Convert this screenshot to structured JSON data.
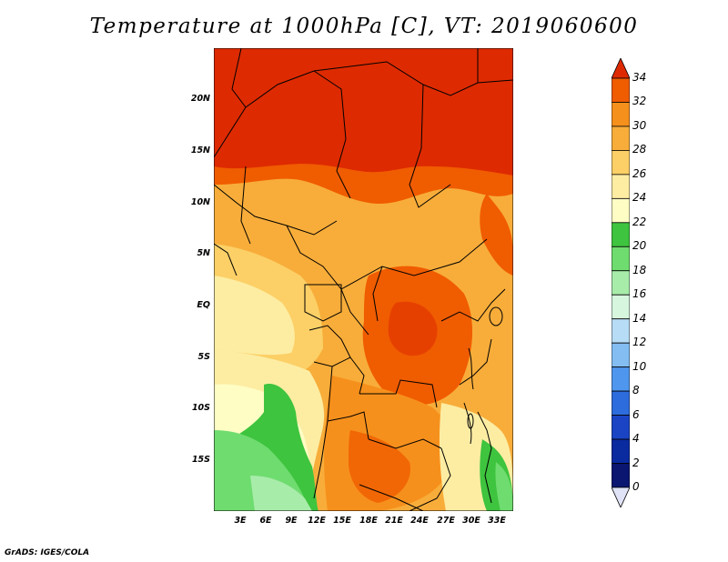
{
  "title": "Temperature at 1000hPa [C], VT: 2019060600",
  "credit": "GrADS: IGES/COLA",
  "map": {
    "lon_range": [
      0,
      35
    ],
    "lat_range": [
      -20,
      25
    ],
    "y_ticks": [
      "20N",
      "15N",
      "10N",
      "5N",
      "EQ",
      "5S",
      "10S",
      "15S"
    ],
    "x_ticks": [
      "3E",
      "6E",
      "9E",
      "12E",
      "15E",
      "18E",
      "21E",
      "24E",
      "27E",
      "30E",
      "33E"
    ]
  },
  "colorbar": {
    "labels": [
      "34",
      "32",
      "30",
      "28",
      "26",
      "24",
      "22",
      "20",
      "18",
      "16",
      "14",
      "12",
      "10",
      "8",
      "6",
      "4",
      "2",
      "0"
    ],
    "colors": [
      "#de2a00",
      "#f05c00",
      "#f6901c",
      "#f8ad3a",
      "#fcd067",
      "#fdeda3",
      "#fefdc4",
      "#3ec43e",
      "#6fdc6f",
      "#a8ecaa",
      "#d6f7de",
      "#b7dcf6",
      "#83bdf2",
      "#4f96ee",
      "#2d6cdc",
      "#1a44c4",
      "#0a2aa0",
      "#0a1670"
    ],
    "top_arrow_color": "#de2a00",
    "bottom_arrow_color": "#e0e2f5"
  }
}
